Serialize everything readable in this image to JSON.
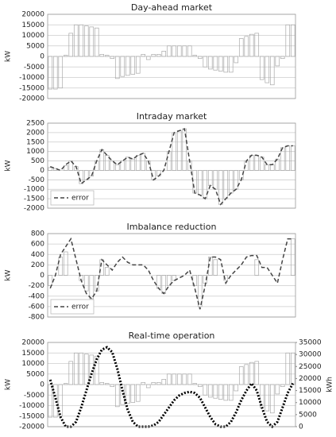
{
  "chart_data": [
    {
      "type": "combo",
      "title": "Day-ahead market",
      "ylabel": "kW",
      "categories": [
        null,
        null,
        null,
        null,
        null,
        null,
        null,
        null,
        null,
        null,
        null,
        null,
        null,
        null,
        null,
        null,
        null,
        null,
        null,
        null,
        null,
        null,
        null,
        null,
        null,
        null,
        null,
        null,
        null,
        null,
        null,
        null,
        null,
        null,
        null,
        null,
        null,
        null,
        null,
        null,
        null,
        null,
        null,
        null,
        null,
        null,
        null,
        null
      ],
      "series": [
        {
          "type": "bar",
          "color": "#a8a8a8",
          "values": [
            -15500,
            -15500,
            -15000,
            500,
            11000,
            15000,
            15000,
            14500,
            14000,
            13500,
            1000,
            500,
            -1000,
            -10500,
            -9500,
            -9000,
            -8500,
            -8000,
            1000,
            -1500,
            1000,
            1000,
            2500,
            5000,
            5000,
            5000,
            5000,
            5000,
            500,
            -1000,
            -5000,
            -6000,
            -6500,
            -7000,
            -7500,
            -7500,
            -3000,
            8500,
            9500,
            10500,
            11000,
            -11000,
            -12500,
            -13500,
            -4500,
            -1000,
            15000,
            15000
          ]
        }
      ],
      "ylim": [
        -20000,
        20000
      ],
      "yticks": [
        -20000,
        -15000,
        -10000,
        -5000,
        0,
        5000,
        10000,
        15000,
        20000
      ],
      "grid": true
    },
    {
      "type": "combo",
      "title": "Intraday market",
      "ylabel": "kW",
      "legend": "lower left",
      "categories": [
        null,
        null,
        null,
        null,
        null,
        null,
        null,
        null,
        null,
        null,
        null,
        null,
        null,
        null,
        null,
        null,
        null,
        null,
        null,
        null,
        null,
        null,
        null,
        null,
        null,
        null,
        null,
        null,
        null,
        null,
        null,
        null,
        null,
        null,
        null,
        null,
        null,
        null,
        null,
        null,
        null,
        null,
        null,
        null,
        null,
        null,
        null,
        null
      ],
      "series": [
        {
          "type": "bar",
          "color": "#a8a8a8",
          "values": [
            150,
            100,
            0,
            250,
            500,
            200,
            -700,
            -500,
            -300,
            500,
            1100,
            800,
            500,
            300,
            500,
            700,
            600,
            800,
            900,
            500,
            -500,
            -300,
            0,
            1000,
            2000,
            2100,
            2200,
            500,
            -1200,
            -1300,
            -1500,
            -800,
            -1000,
            -1800,
            -1500,
            -1200,
            -1000,
            -500,
            500,
            800,
            800,
            700,
            300,
            300,
            600,
            1200,
            1300,
            1300
          ]
        },
        {
          "type": "line",
          "name": "error",
          "color": "#444444",
          "dash": "dashed",
          "values": [
            200,
            100,
            0,
            300,
            500,
            200,
            -700,
            -500,
            -300,
            500,
            1100,
            800,
            500,
            300,
            500,
            700,
            600,
            800,
            900,
            500,
            -500,
            -300,
            0,
            1000,
            2000,
            2100,
            2200,
            500,
            -1200,
            -1300,
            -1500,
            -800,
            -1000,
            -1800,
            -1500,
            -1200,
            -1000,
            -500,
            500,
            800,
            800,
            700,
            300,
            300,
            600,
            1200,
            1300,
            1300
          ]
        }
      ],
      "ylim": [
        -2000,
        2500
      ],
      "yticks": [
        -2000,
        -1500,
        -1000,
        -500,
        0,
        500,
        1000,
        1500,
        2000,
        2500
      ],
      "grid": true
    },
    {
      "type": "combo",
      "title": "Imbalance reduction",
      "ylabel": "kW",
      "legend": "lower left",
      "categories": [
        null,
        null,
        null,
        null,
        null,
        null,
        null,
        null,
        null,
        null,
        null,
        null,
        null,
        null,
        null,
        null,
        null,
        null,
        null,
        null,
        null,
        null,
        null,
        null,
        null,
        null,
        null,
        null,
        null,
        null,
        null,
        null,
        null,
        null,
        null,
        null,
        null,
        null,
        null,
        null,
        null,
        null,
        null,
        null,
        null,
        null,
        null,
        null
      ],
      "series": [
        {
          "type": "bar",
          "color": "#a8a8a8",
          "values": [
            -200,
            0,
            350,
            450,
            0,
            0,
            -100,
            -300,
            -450,
            -300,
            300,
            150,
            0,
            0,
            0,
            0,
            0,
            0,
            0,
            0,
            0,
            -250,
            -350,
            -200,
            -100,
            0,
            0,
            0,
            -200,
            -600,
            -150,
            350,
            300,
            0,
            -100,
            0,
            0,
            0,
            0,
            0,
            300,
            0,
            0,
            0,
            0,
            0,
            0,
            700
          ]
        },
        {
          "type": "line",
          "name": "error",
          "color": "#444444",
          "dash": "dashed",
          "values": [
            -250,
            0,
            400,
            550,
            700,
            300,
            -100,
            -350,
            -450,
            -300,
            300,
            200,
            100,
            250,
            350,
            250,
            200,
            200,
            200,
            100,
            -100,
            -250,
            -350,
            -200,
            -100,
            -50,
            0,
            100,
            -250,
            -650,
            -200,
            350,
            350,
            300,
            -150,
            0,
            100,
            200,
            350,
            380,
            380,
            150,
            150,
            0,
            -150,
            300,
            700,
            700
          ]
        }
      ],
      "ylim": [
        -800,
        800
      ],
      "yticks": [
        -800,
        -600,
        -400,
        -200,
        0,
        200,
        400,
        600,
        800
      ],
      "grid": true
    },
    {
      "type": "combo",
      "title": "Real-time operation",
      "ylabel": "kW",
      "y2label": "kWh",
      "categories": [
        null,
        null,
        null,
        null,
        null,
        null,
        null,
        null,
        null,
        null,
        null,
        null,
        null,
        null,
        null,
        null,
        null,
        null,
        null,
        null,
        null,
        null,
        null,
        null,
        null,
        null,
        null,
        null,
        null,
        null,
        null,
        null,
        null,
        null,
        null,
        null,
        null,
        null,
        null,
        null,
        null,
        null,
        null,
        null,
        null,
        null,
        null,
        null
      ],
      "series": [
        {
          "type": "bar",
          "color": "#a8a8a8",
          "values": [
            -15500,
            -15500,
            -15000,
            500,
            11000,
            15000,
            15000,
            14500,
            14000,
            13500,
            1000,
            500,
            -1000,
            -10500,
            -9500,
            -9000,
            -8500,
            -8000,
            1000,
            -1500,
            1000,
            1000,
            2500,
            5000,
            5000,
            5000,
            5000,
            5000,
            500,
            -1000,
            -5000,
            -6000,
            -6500,
            -7000,
            -7500,
            -7500,
            -3000,
            8500,
            9500,
            10500,
            11000,
            -11000,
            -12500,
            -13500,
            -4500,
            -1000,
            15000,
            15000
          ]
        },
        {
          "type": "line",
          "axis": "y2",
          "color": "#000000",
          "dash": "dotted",
          "values": [
            19500,
            12000,
            4000,
            0,
            0,
            2000,
            8000,
            15000,
            22000,
            28000,
            32000,
            33000,
            31000,
            24000,
            15000,
            7000,
            2000,
            0,
            0,
            0,
            500,
            2000,
            5000,
            8000,
            11000,
            13000,
            14000,
            14500,
            14000,
            12000,
            8000,
            4000,
            1000,
            0,
            0,
            2000,
            6000,
            11000,
            15000,
            18000,
            15000,
            8000,
            2000,
            0,
            2000,
            8000,
            14000,
            18000
          ]
        }
      ],
      "ylim": [
        -20000,
        20000
      ],
      "yticks": [
        -20000,
        -15000,
        -10000,
        -5000,
        0,
        5000,
        10000,
        15000,
        20000
      ],
      "y2lim": [
        0,
        35000
      ],
      "y2ticks": [
        0,
        5000,
        10000,
        15000,
        20000,
        25000,
        30000,
        35000
      ],
      "grid": true
    }
  ]
}
